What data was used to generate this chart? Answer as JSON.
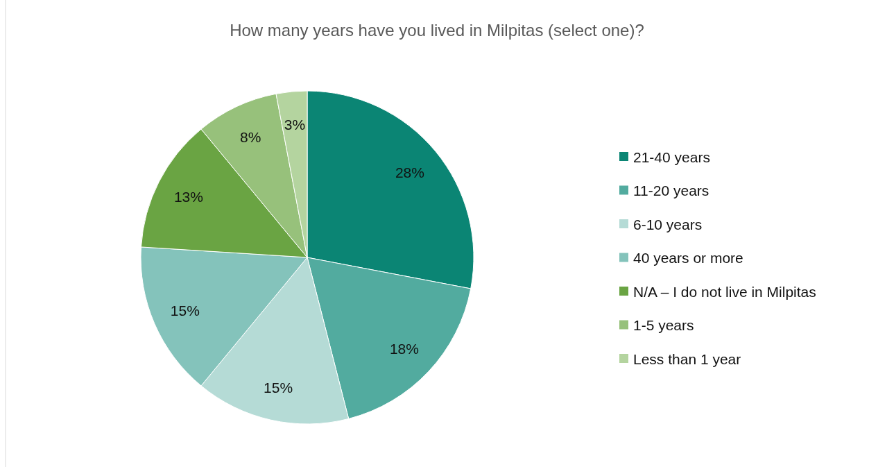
{
  "chart_data": {
    "type": "pie",
    "title": "How many years have you lived in Milpitas (select one)?",
    "categories": [
      "21-40 years",
      "11-20 years",
      "6-10 years",
      "40 years or more",
      "N/A – I do not live in Milpitas",
      "1-5 years",
      "Less than 1 year"
    ],
    "values": [
      28,
      18,
      15,
      15,
      13,
      8,
      3
    ],
    "colors": [
      "#0b8574",
      "#52ab9f",
      "#b5dbd6",
      "#84c3bb",
      "#6aa443",
      "#97c17b",
      "#b4d49f"
    ],
    "value_labels": [
      "28%",
      "18%",
      "15%",
      "15%",
      "13%",
      "8%",
      "3%"
    ],
    "legend": "right"
  }
}
